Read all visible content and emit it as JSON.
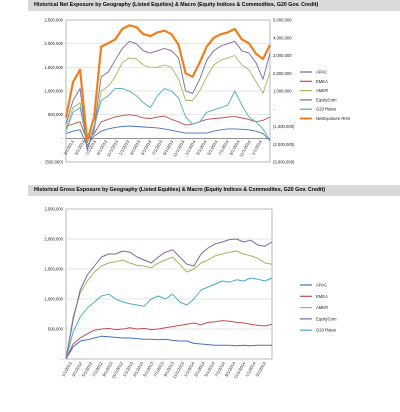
{
  "chart_data": [
    {
      "type": "line",
      "title": "Historical Net Exposure by Geography (Listed Equities) & Macro (Equity Indices & Commodites, G20 Gov. Credit)",
      "y_left_ticks": [
        "2,500,000",
        "2,000,000",
        "1,500,000",
        "1,000,000",
        "500,000",
        "-",
        "(500,000)"
      ],
      "y_left_values": [
        2500000,
        2000000,
        1500000,
        1000000,
        500000,
        0,
        -500000
      ],
      "y_right_ticks": [
        "5,000,000",
        "4,000,000",
        "3,000,000",
        "2,000,000",
        "1,000,000",
        "-",
        "(1,000,000)",
        "(2,000,000)",
        "(3,000,000)"
      ],
      "y_right_values": [
        5000000,
        4000000,
        3000000,
        2000000,
        1000000,
        0,
        -1000000,
        -2000000,
        -3000000
      ],
      "ylim_left": [
        -500000,
        2500000
      ],
      "ylim_right": [
        -3000000,
        5000000
      ],
      "x_ticks": [
        "3/1/2013",
        "5/1/2013",
        "7/1/2013",
        "9/1/2013",
        "11/1/2013",
        "1/1/2013",
        "3/1/2013",
        "5/1/2013",
        "7/1/2013",
        "9/1/2013",
        "11/1/2013",
        "1/1/2014",
        "3/1/2014",
        "5/1/2014",
        "7/1/2014",
        "9/1/2014",
        "11/1/2014",
        "1/1/2014"
      ],
      "legend_position": "right",
      "series": [
        {
          "name": "APAC",
          "color": "#4472c4",
          "axis": "left",
          "values": [
            100000,
            150000,
            180000,
            -150000,
            50000,
            150000,
            200000,
            230000,
            250000,
            260000,
            250000,
            240000,
            230000,
            220000,
            200000,
            170000,
            140000,
            110000,
            110000,
            110000,
            110000,
            150000,
            180000,
            200000,
            200000,
            190000,
            180000,
            150000,
            100000,
            -50000
          ]
        },
        {
          "name": "EMEA",
          "color": "#c0504d",
          "axis": "left",
          "values": [
            250000,
            300000,
            350000,
            -50000,
            100000,
            350000,
            400000,
            450000,
            480000,
            500000,
            480000,
            430000,
            420000,
            450000,
            470000,
            400000,
            350000,
            280000,
            300000,
            350000,
            400000,
            420000,
            430000,
            450000,
            460000,
            430000,
            400000,
            350000,
            380000,
            450000
          ]
        },
        {
          "name": "AMER",
          "color": "#9bbb59",
          "axis": "left",
          "values": [
            200000,
            650000,
            750000,
            -200000,
            150000,
            1000000,
            1100000,
            1300000,
            1600000,
            1700000,
            1680000,
            1550000,
            1500000,
            1500000,
            1550000,
            1500000,
            1250000,
            800000,
            800000,
            1000000,
            1300000,
            1550000,
            1650000,
            1700000,
            1750000,
            1550000,
            1450000,
            1200000,
            950000,
            1400000
          ]
        },
        {
          "name": "EquityCom",
          "color": "#8064a2",
          "axis": "left",
          "values": [
            300000,
            800000,
            1050000,
            -250000,
            200000,
            1300000,
            1400000,
            1650000,
            1900000,
            2050000,
            2000000,
            1850000,
            1800000,
            1850000,
            1900000,
            1850000,
            1700000,
            1000000,
            950000,
            1250000,
            1650000,
            1850000,
            1950000,
            2000000,
            2050000,
            1850000,
            1800000,
            1600000,
            1250000,
            1800000
          ]
        },
        {
          "name": "G20 Rates",
          "color": "#4bacc6",
          "axis": "left",
          "values": [
            150000,
            550000,
            650000,
            -100000,
            250000,
            800000,
            900000,
            1050000,
            1050000,
            1000000,
            900000,
            750000,
            650000,
            900000,
            1050000,
            1000000,
            850000,
            450000,
            300000,
            350000,
            550000,
            600000,
            650000,
            700000,
            1000000,
            700000,
            450000,
            350000,
            200000,
            -50000
          ]
        },
        {
          "name": "NetExposure RHS",
          "color": "#f07f1b",
          "axis": "right",
          "values": [
            -500000,
            1500000,
            2200000,
            -1800000,
            -500000,
            3500000,
            3700000,
            3900000,
            4500000,
            4700000,
            4600000,
            4200000,
            4100000,
            4300000,
            4400000,
            4200000,
            3600000,
            2000000,
            1800000,
            2600000,
            3500000,
            4000000,
            4200000,
            4300000,
            4500000,
            3900000,
            3700000,
            3100000,
            2800000,
            3600000
          ]
        }
      ]
    },
    {
      "type": "line",
      "title": "Historical Gross Exposure by Geography (Listed Equities) & Macro (Equity Indices & Commodites, G20 Gov. Credit)",
      "y_ticks": [
        "2,500,000",
        "2,000,000",
        "1,500,000",
        "1,000,000",
        "500,000",
        "-"
      ],
      "y_values": [
        2500000,
        2000000,
        1500000,
        1000000,
        500000,
        0
      ],
      "ylim": [
        0,
        2500000
      ],
      "x_ticks": [
        "1/1/2012",
        "3/1/2012",
        "5/1/2012",
        "7/1/2012",
        "9/1/2012",
        "11/1/2012",
        "1/1/2013",
        "3/1/2013",
        "5/1/2013",
        "7/1/2013",
        "9/1/2013",
        "11/1/2013",
        "1/1/2014",
        "3/1/2014",
        "5/1/2014",
        "7/1/2014",
        "9/1/2014",
        "11/1/2014",
        "1/1/2014",
        "3/1/2014"
      ],
      "legend_position": "right",
      "series": [
        {
          "name": "APAC",
          "color": "#4472c4",
          "values": [
            0,
            200000,
            300000,
            320000,
            350000,
            380000,
            370000,
            360000,
            350000,
            350000,
            340000,
            330000,
            330000,
            320000,
            330000,
            310000,
            300000,
            300000,
            260000,
            250000,
            240000,
            230000,
            230000,
            230000,
            220000,
            230000,
            220000,
            230000,
            230000,
            230000
          ]
        },
        {
          "name": "EMEA",
          "color": "#c0504d",
          "values": [
            0,
            250000,
            350000,
            420000,
            480000,
            500000,
            510000,
            490000,
            500000,
            520000,
            500000,
            510000,
            490000,
            500000,
            520000,
            540000,
            560000,
            580000,
            600000,
            570000,
            610000,
            620000,
            640000,
            630000,
            610000,
            600000,
            580000,
            560000,
            550000,
            580000
          ]
        },
        {
          "name": "AMER",
          "color": "#9bbb59",
          "values": [
            0,
            700000,
            1100000,
            1300000,
            1450000,
            1550000,
            1600000,
            1620000,
            1650000,
            1600000,
            1560000,
            1550000,
            1520000,
            1600000,
            1650000,
            1700000,
            1580000,
            1450000,
            1500000,
            1600000,
            1650000,
            1720000,
            1750000,
            1780000,
            1800000,
            1750000,
            1720000,
            1680000,
            1600000,
            1580000
          ]
        },
        {
          "name": "EquityCom",
          "color": "#8064a2",
          "values": [
            0,
            650000,
            1150000,
            1400000,
            1550000,
            1700000,
            1750000,
            1750000,
            1800000,
            1780000,
            1700000,
            1650000,
            1600000,
            1700000,
            1780000,
            1820000,
            1700000,
            1580000,
            1550000,
            1750000,
            1850000,
            1920000,
            1950000,
            1990000,
            2000000,
            1950000,
            1980000,
            1900000,
            1880000,
            1950000
          ]
        },
        {
          "name": "G20 Rates",
          "color": "#4bacc6",
          "values": [
            0,
            450000,
            700000,
            850000,
            950000,
            1050000,
            1080000,
            1000000,
            950000,
            920000,
            900000,
            880000,
            1000000,
            1050000,
            1000000,
            1080000,
            950000,
            900000,
            1000000,
            1150000,
            1200000,
            1250000,
            1300000,
            1280000,
            1320000,
            1300000,
            1350000,
            1330000,
            1300000,
            1350000
          ]
        }
      ]
    }
  ]
}
